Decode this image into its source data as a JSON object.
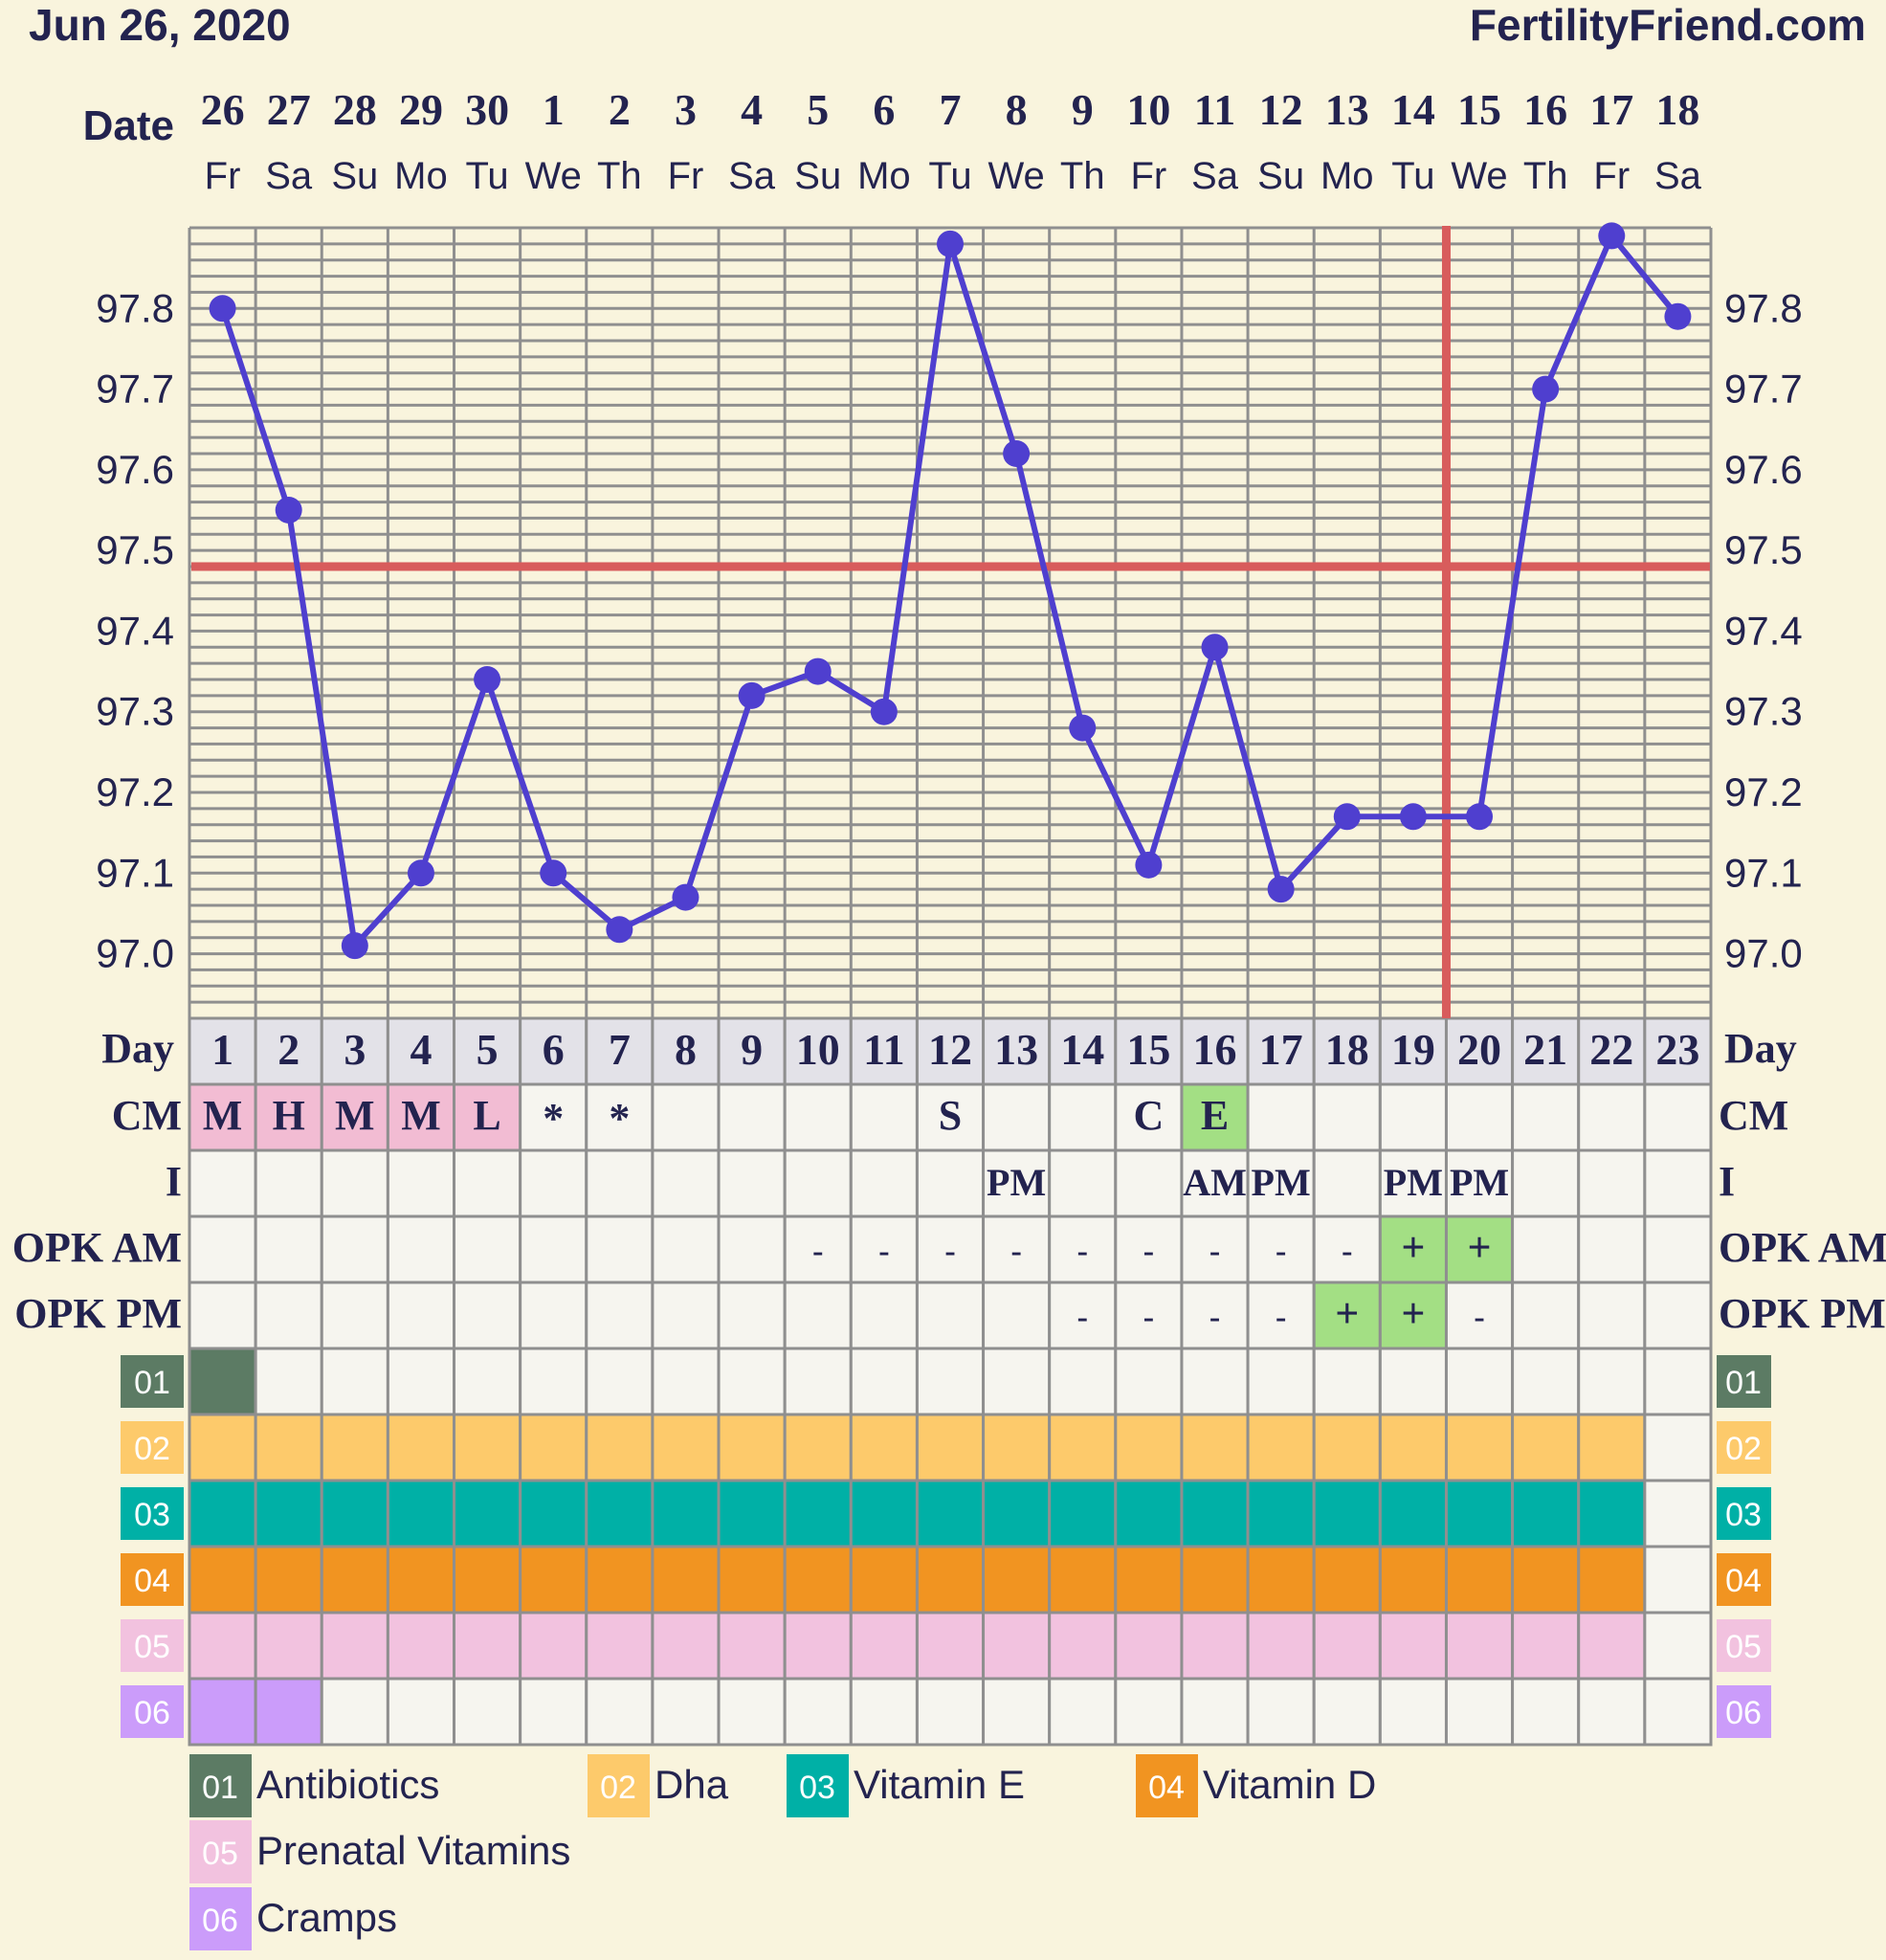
{
  "header": {
    "chart_date": "Jun 26, 2020",
    "site": "FertilityFriend.com"
  },
  "colors": {
    "background": "#f9f4dd",
    "navy": "#23234f",
    "temp_line": "#4f3fcf",
    "coverline": "#d85c5c",
    "grid": "#8f8f8f",
    "cell": "#f6f5ef",
    "cm_pink": "#f2bcd3",
    "positive_green": "#a3df84"
  },
  "row_labels": {
    "date": "Date",
    "day": "Day",
    "cm": "CM",
    "intercourse": "I",
    "opk_am": "OPK AM",
    "opk_pm": "OPK PM"
  },
  "chart_data": {
    "type": "line",
    "title": "",
    "xlabel": "Day",
    "ylabel": "",
    "ylim": [
      96.92,
      97.9
    ],
    "yticks": [
      "97.0",
      "97.1",
      "97.2",
      "97.3",
      "97.4",
      "97.5",
      "97.6",
      "97.7",
      "97.8"
    ],
    "dates": [
      "26",
      "27",
      "28",
      "29",
      "30",
      "1",
      "2",
      "3",
      "4",
      "5",
      "6",
      "7",
      "8",
      "9",
      "10",
      "11",
      "12",
      "13",
      "14",
      "15",
      "16",
      "17",
      "18"
    ],
    "weekdays": [
      "Fr",
      "Sa",
      "Su",
      "Mo",
      "Tu",
      "We",
      "Th",
      "Fr",
      "Sa",
      "Su",
      "Mo",
      "Tu",
      "We",
      "Th",
      "Fr",
      "Sa",
      "Su",
      "Mo",
      "Tu",
      "We",
      "Th",
      "Fr",
      "Sa"
    ],
    "cycle_days": [
      "1",
      "2",
      "3",
      "4",
      "5",
      "6",
      "7",
      "8",
      "9",
      "10",
      "11",
      "12",
      "13",
      "14",
      "15",
      "16",
      "17",
      "18",
      "19",
      "20",
      "21",
      "22",
      "23"
    ],
    "series": [
      {
        "values": [
          97.8,
          97.55,
          97.01,
          97.1,
          97.34,
          97.1,
          97.03,
          97.07,
          97.32,
          97.35,
          97.3,
          97.88,
          97.62,
          97.28,
          97.11,
          97.38,
          97.08,
          97.17,
          97.17,
          97.17,
          97.7,
          97.89,
          97.79
        ]
      }
    ],
    "coverline": 97.48,
    "ovulation_marker_day": 20,
    "grid": true,
    "cervical_mucus": [
      "M",
      "H",
      "M",
      "M",
      "L",
      "*",
      "*",
      "",
      "",
      "",
      "",
      "S",
      "",
      "",
      "C",
      "E",
      "",
      "",
      "",
      "",
      "",
      "",
      ""
    ],
    "intercourse": [
      "",
      "",
      "",
      "",
      "",
      "",
      "",
      "",
      "",
      "",
      "",
      "",
      "PM",
      "",
      "",
      "AM",
      "PM",
      "",
      "PM",
      "PM",
      "",
      "",
      ""
    ],
    "opk_am": [
      "",
      "",
      "",
      "",
      "",
      "",
      "",
      "",
      "",
      "-",
      "-",
      "-",
      "-",
      "-",
      "-",
      "-",
      "-",
      "-",
      "+",
      "+",
      "",
      "",
      ""
    ],
    "opk_pm": [
      "",
      "",
      "",
      "",
      "",
      "",
      "",
      "",
      "",
      "",
      "",
      "",
      "",
      "-",
      "-",
      "-",
      "-",
      "+",
      "+",
      "-",
      "",
      "",
      ""
    ]
  },
  "custom_rows": [
    {
      "code": "01",
      "name": "Antibiotics",
      "color": "#5c7b64",
      "days": [
        1
      ]
    },
    {
      "code": "02",
      "name": "Dha",
      "color": "#fdca6b",
      "days": [
        1,
        2,
        3,
        4,
        5,
        6,
        7,
        8,
        9,
        10,
        11,
        12,
        13,
        14,
        15,
        16,
        17,
        18,
        19,
        20,
        21,
        22
      ]
    },
    {
      "code": "03",
      "name": "Vitamin E",
      "color": "#00b0a6",
      "days": [
        1,
        2,
        3,
        4,
        5,
        6,
        7,
        8,
        9,
        10,
        11,
        12,
        13,
        14,
        15,
        16,
        17,
        18,
        19,
        20,
        21,
        22
      ]
    },
    {
      "code": "04",
      "name": "Vitamin D",
      "color": "#f19421",
      "days": [
        1,
        2,
        3,
        4,
        5,
        6,
        7,
        8,
        9,
        10,
        11,
        12,
        13,
        14,
        15,
        16,
        17,
        18,
        19,
        20,
        21,
        22
      ]
    },
    {
      "code": "05",
      "name": "Prenatal Vitamins",
      "color": "#f2c2df",
      "days": [
        1,
        2,
        3,
        4,
        5,
        6,
        7,
        8,
        9,
        10,
        11,
        12,
        13,
        14,
        15,
        16,
        17,
        18,
        19,
        20,
        21,
        22
      ]
    },
    {
      "code": "06",
      "name": "Cramps",
      "color": "#cb9cfa",
      "days": [
        1,
        2
      ]
    }
  ]
}
